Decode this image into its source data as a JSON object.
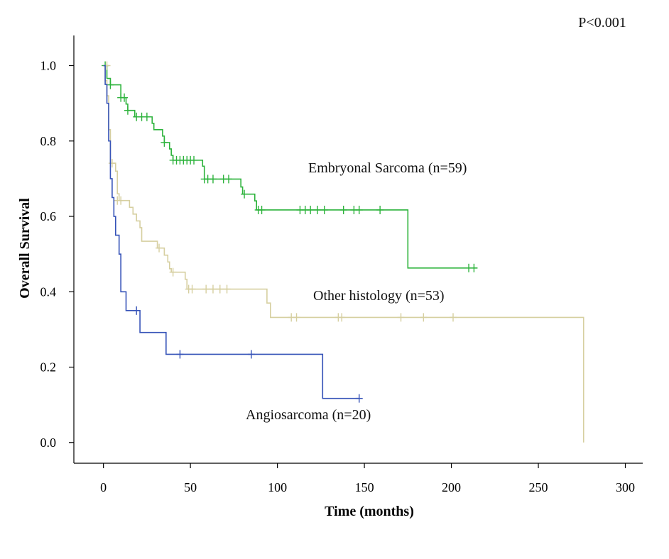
{
  "chart_data": {
    "type": "line",
    "subtype": "kaplan-meier survival curve",
    "title": "",
    "xlabel": "Time (months)",
    "ylabel": "Overall Survival",
    "xlim": [
      -17,
      310
    ],
    "ylim": [
      -0.055,
      1.08
    ],
    "xticks": [
      0,
      50,
      100,
      150,
      200,
      250,
      300
    ],
    "yticks": [
      0.0,
      0.2,
      0.4,
      0.6,
      0.8,
      1.0
    ],
    "xtick_labels": [
      "0",
      "50",
      "100",
      "150",
      "200",
      "250",
      "300"
    ],
    "ytick_labels": [
      "0.0",
      "0.2",
      "0.4",
      "0.6",
      "0.8",
      "1.0"
    ],
    "grid": false,
    "annotations": {
      "p_value": "P<0.001",
      "embryonal": "Embryonal Sarcoma (n=59)",
      "other": "Other histology (n=53)",
      "angio": "Angiosarcoma (n=20)"
    },
    "series": [
      {
        "key": "embryonal",
        "color": "#2db33c",
        "steps": [
          [
            0,
            1.0
          ],
          [
            1,
            1.0
          ],
          [
            2,
            0.966
          ],
          [
            4,
            0.949
          ],
          [
            9,
            0.949
          ],
          [
            10,
            0.915
          ],
          [
            13,
            0.898
          ],
          [
            14,
            0.881
          ],
          [
            18,
            0.864
          ],
          [
            28,
            0.847
          ],
          [
            29,
            0.83
          ],
          [
            34,
            0.813
          ],
          [
            35,
            0.796
          ],
          [
            38,
            0.779
          ],
          [
            39,
            0.762
          ],
          [
            40,
            0.749
          ],
          [
            57,
            0.733
          ],
          [
            58,
            0.699
          ],
          [
            79,
            0.678
          ],
          [
            80,
            0.659
          ],
          [
            87,
            0.641
          ],
          [
            88,
            0.617
          ],
          [
            174,
            0.617
          ],
          [
            175,
            0.463
          ],
          [
            215,
            0.463
          ]
        ],
        "censored": [
          [
            1,
            1.0
          ],
          [
            4,
            0.949
          ],
          [
            10,
            0.915
          ],
          [
            12,
            0.915
          ],
          [
            14,
            0.881
          ],
          [
            19,
            0.864
          ],
          [
            22,
            0.864
          ],
          [
            25,
            0.864
          ],
          [
            35,
            0.796
          ],
          [
            40,
            0.749
          ],
          [
            42,
            0.749
          ],
          [
            44,
            0.749
          ],
          [
            46,
            0.749
          ],
          [
            48,
            0.749
          ],
          [
            50,
            0.749
          ],
          [
            52,
            0.749
          ],
          [
            58,
            0.699
          ],
          [
            60,
            0.699
          ],
          [
            63,
            0.699
          ],
          [
            69,
            0.699
          ],
          [
            72,
            0.699
          ],
          [
            81,
            0.659
          ],
          [
            89,
            0.617
          ],
          [
            91,
            0.617
          ],
          [
            113,
            0.617
          ],
          [
            116,
            0.617
          ],
          [
            119,
            0.617
          ],
          [
            123,
            0.617
          ],
          [
            127,
            0.617
          ],
          [
            138,
            0.617
          ],
          [
            144,
            0.617
          ],
          [
            147,
            0.617
          ],
          [
            159,
            0.617
          ],
          [
            210,
            0.463
          ],
          [
            213,
            0.463
          ]
        ]
      },
      {
        "key": "other",
        "color": "#d6cfa0",
        "steps": [
          [
            0,
            1.0
          ],
          [
            1,
            0.96
          ],
          [
            2,
            0.92
          ],
          [
            3,
            0.83
          ],
          [
            4,
            0.741
          ],
          [
            7,
            0.72
          ],
          [
            8,
            0.66
          ],
          [
            9,
            0.642
          ],
          [
            14,
            0.642
          ],
          [
            15,
            0.624
          ],
          [
            17,
            0.606
          ],
          [
            19,
            0.588
          ],
          [
            21,
            0.57
          ],
          [
            22,
            0.534
          ],
          [
            30,
            0.534
          ],
          [
            31,
            0.516
          ],
          [
            35,
            0.497
          ],
          [
            37,
            0.479
          ],
          [
            38,
            0.461
          ],
          [
            39,
            0.452
          ],
          [
            47,
            0.433
          ],
          [
            48,
            0.407
          ],
          [
            93,
            0.407
          ],
          [
            94,
            0.37
          ],
          [
            96,
            0.332
          ],
          [
            276,
            0.332
          ],
          [
            276,
            0.0
          ]
        ],
        "censored": [
          [
            2,
            1.0
          ],
          [
            5,
            0.741
          ],
          [
            8,
            0.642
          ],
          [
            10,
            0.642
          ],
          [
            32,
            0.516
          ],
          [
            40,
            0.452
          ],
          [
            49,
            0.407
          ],
          [
            51,
            0.407
          ],
          [
            59,
            0.407
          ],
          [
            63,
            0.407
          ],
          [
            67,
            0.407
          ],
          [
            71,
            0.407
          ],
          [
            108,
            0.332
          ],
          [
            111,
            0.332
          ],
          [
            135,
            0.332
          ],
          [
            137,
            0.332
          ],
          [
            171,
            0.332
          ],
          [
            184,
            0.332
          ],
          [
            201,
            0.332
          ]
        ]
      },
      {
        "key": "angio",
        "color": "#3653b8",
        "steps": [
          [
            0,
            1.0
          ],
          [
            1,
            0.95
          ],
          [
            2,
            0.9
          ],
          [
            3,
            0.8
          ],
          [
            4,
            0.7
          ],
          [
            5,
            0.65
          ],
          [
            6,
            0.6
          ],
          [
            7,
            0.55
          ],
          [
            9,
            0.5
          ],
          [
            10,
            0.4
          ],
          [
            13,
            0.35
          ],
          [
            20,
            0.35
          ],
          [
            21,
            0.292
          ],
          [
            35,
            0.292
          ],
          [
            36,
            0.234
          ],
          [
            125,
            0.234
          ],
          [
            126,
            0.117
          ],
          [
            147,
            0.117
          ]
        ],
        "censored": [
          [
            19,
            0.35
          ],
          [
            44,
            0.234
          ],
          [
            85,
            0.234
          ],
          [
            147,
            0.117
          ]
        ]
      }
    ]
  }
}
